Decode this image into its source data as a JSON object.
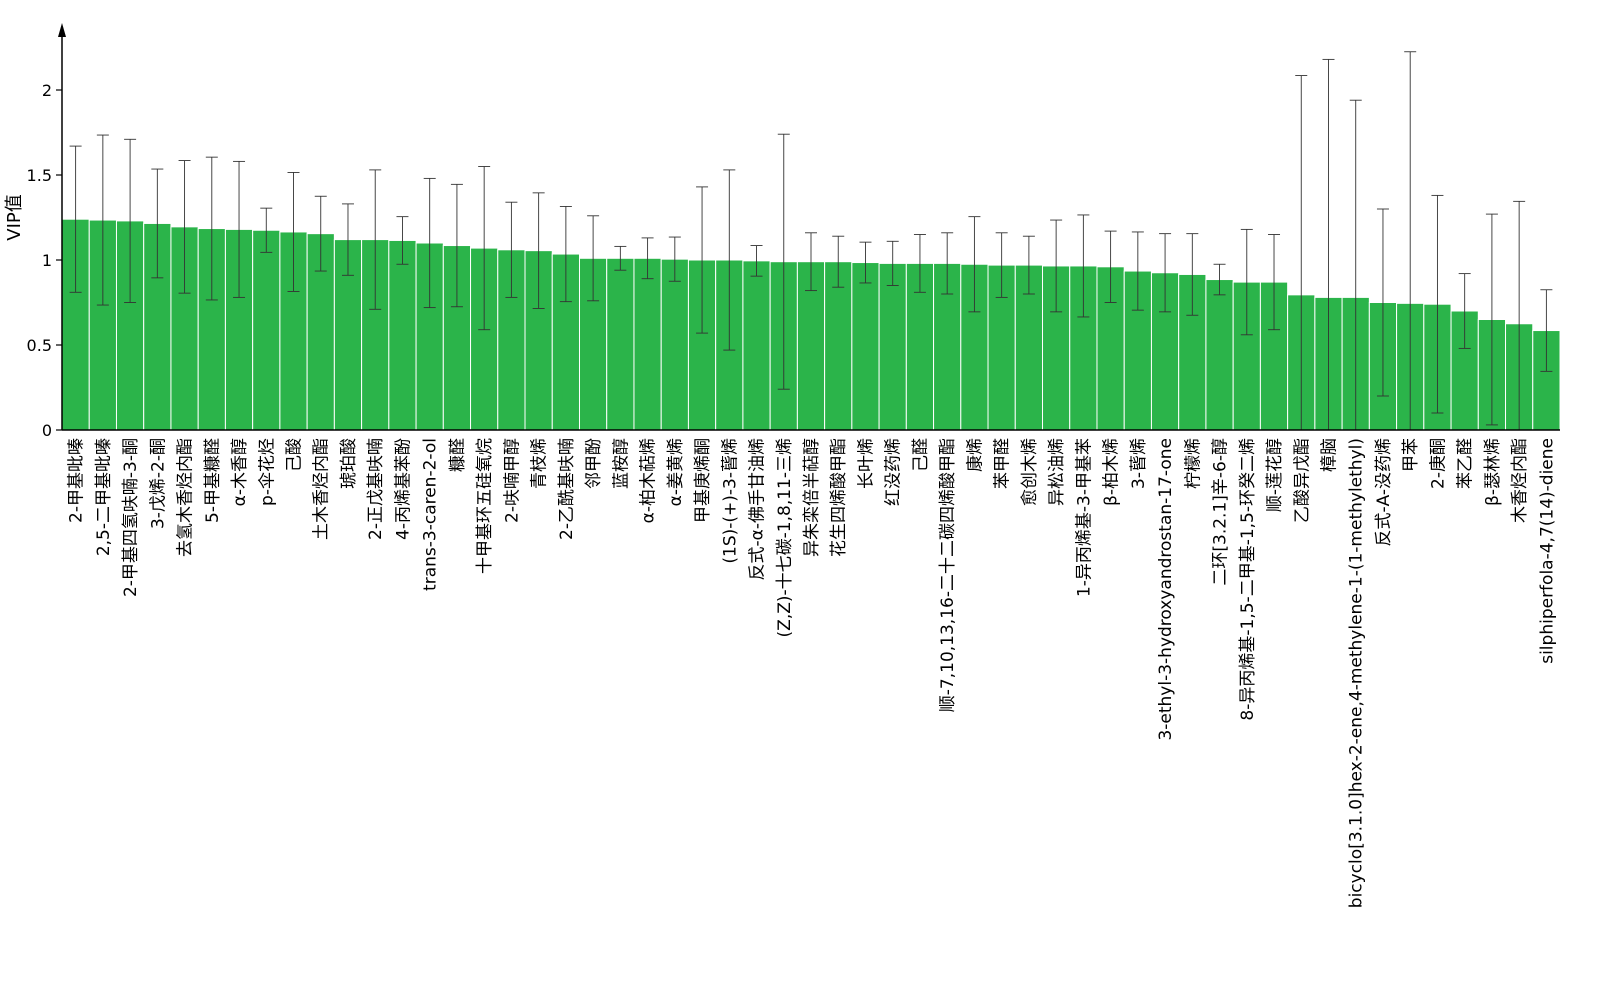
{
  "chart_data": {
    "type": "bar",
    "ylabel": "VIP值",
    "xlabel": "",
    "ylim": [
      0,
      2.4
    ],
    "yticks": [
      0,
      0.5,
      1,
      1.5,
      2
    ],
    "ytick_labels": [
      "0",
      "0.5",
      "1",
      "1.5",
      "2"
    ],
    "grid": false,
    "bar_color": "#2bb44a",
    "error_color": "#333333",
    "categories": [
      "2-甲基吡嗪",
      "2,5-二甲基吡嗪",
      "2-甲基四氢呋喃-3-酮",
      "3-戊烯-2-酮",
      "去氢木香烃内酯",
      "5-甲基糠醛",
      "α-木香醇",
      "p-伞花烃",
      "己酸",
      "土木香烃内酯",
      "琥珀酸",
      "2-正戊基呋喃",
      "4-丙烯基苯酚",
      "trans-3-caren-2-ol",
      "糠醛",
      "十甲基环五硅氧烷",
      "2-呋喃甲醇",
      "青枝烯",
      "2-乙酰基呋喃",
      "邻甲酚",
      "蓝桉醇",
      "α-柏木萜烯",
      "α-姜黄烯",
      "甲基庚烯酮",
      "(1S)-(+)-3-蒈烯",
      "反式-α-佛手甘油烯",
      "(Z,Z)-十七碳-1,8,11-三烯",
      "异朱栾倍半萜醇",
      "花生四烯酸甲酯",
      "长叶烯",
      "红没药烯",
      "己醛",
      "顺-7,10,13,16-二十二碳四烯酸甲酯",
      "康烯",
      "苯甲醛",
      "愈创木烯",
      "异松油烯",
      "1-异丙烯基-3-甲基苯",
      "β-柏木烯",
      "3-蒈烯",
      "3-ethyl-3-hydroxyandrostan-17-one",
      "柠檬烯",
      "二环[3.2.1]辛-6-醇",
      "8-异丙烯基-1,5-二甲基-1,5-环癸二烯",
      "顺-莲花醇",
      "乙酸异戊酯",
      "樟脑",
      "bicyclo[3.1.0]hex-2-ene,4-methylene-1-(1-methylethyl)",
      "反式-A-没药烯",
      "甲苯",
      "2-庚酮",
      "苯乙醛",
      "β-瑟林烯",
      "木香烃内酯",
      "silphiperfola-4,7(14)-diene"
    ],
    "values": [
      1.24,
      1.235,
      1.23,
      1.215,
      1.195,
      1.185,
      1.18,
      1.175,
      1.165,
      1.155,
      1.12,
      1.12,
      1.115,
      1.1,
      1.085,
      1.07,
      1.06,
      1.055,
      1.035,
      1.01,
      1.01,
      1.01,
      1.005,
      1.0,
      1.0,
      0.995,
      0.99,
      0.99,
      0.99,
      0.985,
      0.98,
      0.98,
      0.98,
      0.975,
      0.97,
      0.97,
      0.965,
      0.965,
      0.96,
      0.935,
      0.925,
      0.915,
      0.885,
      0.87,
      0.87,
      0.795,
      0.78,
      0.78,
      0.75,
      0.745,
      0.74,
      0.7,
      0.65,
      0.625,
      0.585
    ],
    "errors": [
      0.43,
      0.5,
      0.48,
      0.32,
      0.39,
      0.42,
      0.4,
      0.13,
      0.35,
      0.22,
      0.21,
      0.41,
      0.14,
      0.38,
      0.36,
      0.48,
      0.28,
      0.34,
      0.28,
      0.25,
      0.07,
      0.12,
      0.13,
      0.43,
      0.53,
      0.09,
      0.75,
      0.17,
      0.15,
      0.12,
      0.13,
      0.17,
      0.18,
      0.28,
      0.19,
      0.17,
      0.27,
      0.3,
      0.21,
      0.23,
      0.23,
      0.24,
      0.09,
      0.31,
      0.28,
      1.29,
      1.4,
      1.16,
      0.55,
      1.48,
      0.64,
      0.22,
      0.62,
      0.72,
      0.24
    ]
  }
}
